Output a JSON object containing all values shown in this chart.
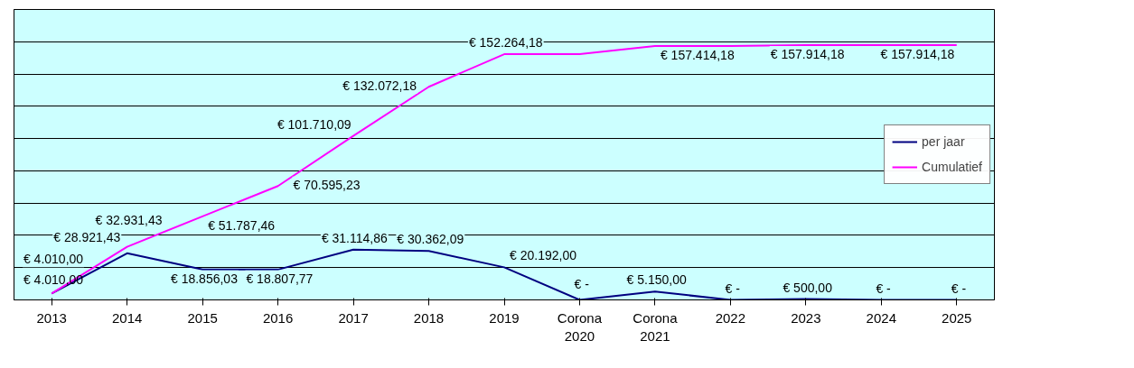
{
  "chart_data": {
    "type": "line",
    "categories": [
      "2013",
      "2014",
      "2015",
      "2016",
      "2017",
      "2018",
      "2019",
      "Corona 2020",
      "Corona 2021",
      "2022",
      "2023",
      "2024",
      "2025"
    ],
    "series": [
      {
        "name": "per jaar",
        "color": "#000080",
        "values": [
          4010.0,
          28921.43,
          18856.03,
          18807.77,
          31114.86,
          30362.09,
          20192.0,
          0,
          5150.0,
          0,
          500.0,
          0,
          0
        ],
        "value_labels": [
          "€ 4.010,00",
          "€ 28.921,43",
          "€ 18.856,03",
          "€ 18.807,77",
          "€ 31.114,86",
          "€ 30.362,09",
          "€ 20.192,00",
          "€ -",
          "€ 5.150,00",
          "€ -",
          "€ 500,00",
          "€ -",
          "€ -"
        ]
      },
      {
        "name": "Cumulatief",
        "color": "#ff00ff",
        "values": [
          4010.0,
          32931.43,
          51787.46,
          70595.23,
          101710.09,
          132072.18,
          152264.18,
          152264.18,
          157414.18,
          157414.18,
          157914.18,
          157914.18,
          157914.18
        ],
        "value_labels": [
          "€ 4.010,00",
          "€ 32.931,43",
          "€ 51.787,46",
          "€ 70.595,23",
          "€ 101.710,09",
          "€ 132.072,18",
          "€ 152.264,18",
          null,
          "€ 157.414,18",
          null,
          "€ 157.914,18",
          null,
          "€ 157.914,18"
        ]
      }
    ],
    "ylim": [
      0,
      180000
    ],
    "yticks": [
      {
        "value": 0,
        "label": null
      },
      {
        "value": 20000,
        "label": null
      },
      {
        "value": 40000,
        "label": null
      },
      {
        "value": 60000,
        "label": null
      },
      {
        "value": 80000,
        "label": null
      },
      {
        "value": 100000,
        "label": null
      },
      {
        "value": 120000,
        "label": null
      },
      {
        "value": 140000,
        "label": null
      },
      {
        "value": 160000,
        "label": null
      },
      {
        "value": 180000,
        "label": null
      }
    ],
    "tick_labels": "x",
    "grid": "y",
    "legend": "right"
  }
}
